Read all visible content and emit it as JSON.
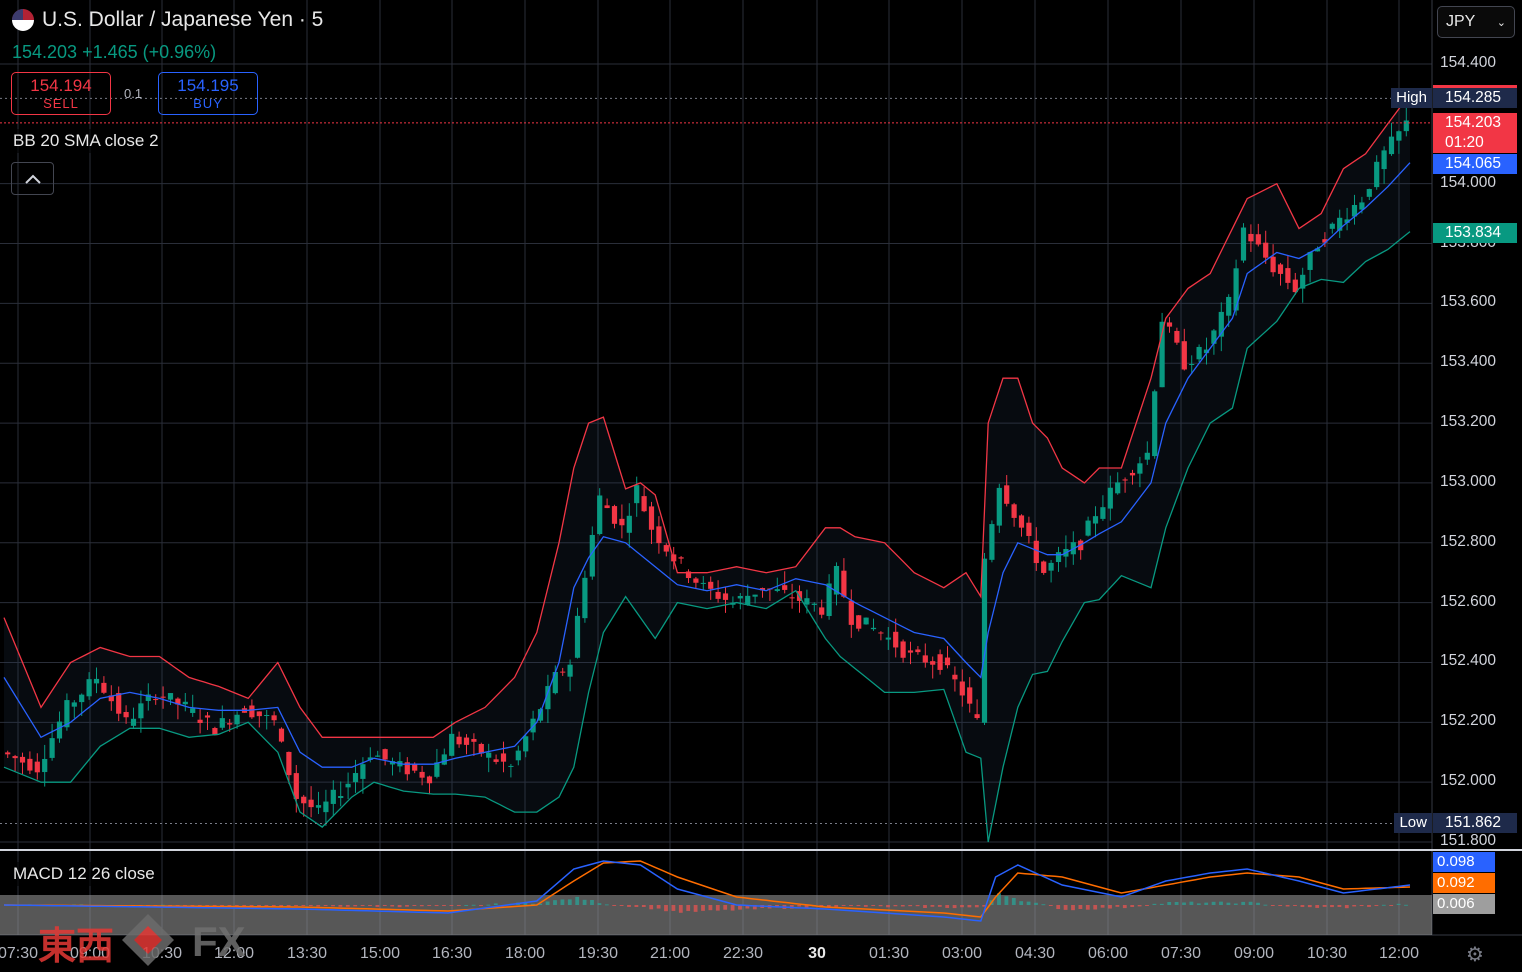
{
  "header": {
    "symbol_title": "U.S. Dollar / Japanese Yen · 5",
    "change": "154.203 +1.465 (+0.96%)",
    "flag_icon": "us-flag-icon"
  },
  "trade": {
    "sell": {
      "price": "154.194",
      "label": "SELL"
    },
    "buy": {
      "price": "154.195",
      "label": "BUY"
    },
    "spread": "0.1"
  },
  "indicators": {
    "bb_label": "BB 20 SMA close 2",
    "macd_label": "MACD 12 26 close"
  },
  "currency_select": {
    "value": "JPY"
  },
  "price_scale": {
    "ticks": [
      "154.400",
      "154.000",
      "153.800",
      "153.600",
      "153.400",
      "153.200",
      "153.000",
      "152.800",
      "152.600",
      "152.400",
      "152.200",
      "152.000",
      "151.800"
    ],
    "tags": [
      {
        "value": "154.296",
        "color": "#f23645"
      },
      {
        "value": "154.285",
        "color": "#1e2a4a",
        "side_label": "High"
      },
      {
        "value": "154.203",
        "sub": "01:20",
        "color": "#f23645"
      },
      {
        "value": "154.065",
        "color": "#2962ff"
      },
      {
        "value": "153.834",
        "color": "#089981"
      },
      {
        "value": "151.862",
        "color": "#1e2a4a",
        "side_label": "Low"
      }
    ]
  },
  "macd_scale": {
    "tags": [
      {
        "value": "0.098",
        "color": "#2962ff"
      },
      {
        "value": "0.092",
        "color": "#ff6d00"
      },
      {
        "value": "0.006",
        "color": "#9e9e9e"
      }
    ]
  },
  "time_axis": {
    "labels": [
      "07:30",
      "09:00",
      "10:30",
      "12:00",
      "13:30",
      "15:00",
      "16:30",
      "18:00",
      "19:30",
      "21:00",
      "22:30",
      "30",
      "01:30",
      "03:00",
      "04:30",
      "06:00",
      "07:30",
      "09:00",
      "10:30",
      "12:00"
    ]
  },
  "watermark": {
    "text": "東西",
    "fx": "FX"
  },
  "colors": {
    "up": "#089981",
    "down": "#f23645",
    "bb_upper": "#f23645",
    "bb_basis": "#2962ff",
    "bb_lower": "#089981",
    "macd": "#2962ff",
    "signal": "#ff6d00"
  },
  "chart_data": {
    "type": "candlestick",
    "symbol": "U.S. Dollar / Japanese Yen",
    "interval": "5",
    "ylim": [
      151.78,
      154.42
    ],
    "high": 154.285,
    "low": 151.862,
    "last": 154.203,
    "bb_upper_last": 154.296,
    "bb_basis_last": 154.065,
    "bb_lower_last": 153.834,
    "close_path": [
      [
        0,
        152.1
      ],
      [
        5,
        152.05
      ],
      [
        9,
        152.25
      ],
      [
        13,
        152.35
      ],
      [
        17,
        152.2
      ],
      [
        21,
        152.3
      ],
      [
        25,
        152.25
      ],
      [
        29,
        152.18
      ],
      [
        33,
        152.25
      ],
      [
        37,
        152.2
      ],
      [
        40,
        151.95
      ],
      [
        43,
        151.9
      ],
      [
        47,
        152.0
      ],
      [
        50,
        152.1
      ],
      [
        54,
        152.05
      ],
      [
        58,
        152.02
      ],
      [
        61,
        152.15
      ],
      [
        65,
        152.1
      ],
      [
        69,
        152.05
      ],
      [
        72,
        152.2
      ],
      [
        75,
        152.35
      ],
      [
        77,
        152.4
      ],
      [
        79,
        152.7
      ],
      [
        81,
        152.95
      ],
      [
        84,
        152.85
      ],
      [
        86,
        152.98
      ],
      [
        88,
        152.85
      ],
      [
        91,
        152.75
      ],
      [
        95,
        152.65
      ],
      [
        99,
        152.6
      ],
      [
        103,
        152.65
      ],
      [
        107,
        152.62
      ],
      [
        111,
        152.58
      ],
      [
        113,
        152.7
      ],
      [
        115,
        152.55
      ],
      [
        119,
        152.5
      ],
      [
        123,
        152.42
      ],
      [
        127,
        152.4
      ],
      [
        130,
        152.3
      ],
      [
        132,
        152.2
      ],
      [
        133,
        152.75
      ],
      [
        135,
        153.0
      ],
      [
        137,
        152.9
      ],
      [
        139,
        152.8
      ],
      [
        141,
        152.7
      ],
      [
        143,
        152.75
      ],
      [
        146,
        152.8
      ],
      [
        148,
        152.9
      ],
      [
        151,
        153.0
      ],
      [
        155,
        153.1
      ],
      [
        157,
        153.55
      ],
      [
        160,
        153.4
      ],
      [
        163,
        153.45
      ],
      [
        166,
        153.6
      ],
      [
        168,
        153.85
      ],
      [
        172,
        153.72
      ],
      [
        175,
        153.65
      ],
      [
        178,
        153.8
      ],
      [
        181,
        153.88
      ],
      [
        184,
        153.95
      ],
      [
        187,
        154.1
      ],
      [
        190,
        154.2
      ]
    ],
    "bb_upper_path": [
      [
        0,
        152.55
      ],
      [
        5,
        152.25
      ],
      [
        9,
        152.4
      ],
      [
        13,
        152.45
      ],
      [
        17,
        152.42
      ],
      [
        21,
        152.42
      ],
      [
        25,
        152.35
      ],
      [
        29,
        152.32
      ],
      [
        33,
        152.28
      ],
      [
        37,
        152.4
      ],
      [
        40,
        152.25
      ],
      [
        43,
        152.15
      ],
      [
        47,
        152.15
      ],
      [
        50,
        152.15
      ],
      [
        54,
        152.15
      ],
      [
        58,
        152.15
      ],
      [
        61,
        152.2
      ],
      [
        65,
        152.25
      ],
      [
        69,
        152.35
      ],
      [
        72,
        152.5
      ],
      [
        75,
        152.8
      ],
      [
        77,
        153.05
      ],
      [
        79,
        153.2
      ],
      [
        81,
        153.22
      ],
      [
        84,
        152.98
      ],
      [
        86,
        153.0
      ],
      [
        88,
        152.96
      ],
      [
        91,
        152.7
      ],
      [
        95,
        152.7
      ],
      [
        99,
        152.72
      ],
      [
        103,
        152.7
      ],
      [
        107,
        152.72
      ],
      [
        111,
        152.85
      ],
      [
        113,
        152.85
      ],
      [
        115,
        152.82
      ],
      [
        119,
        152.8
      ],
      [
        123,
        152.7
      ],
      [
        127,
        152.65
      ],
      [
        130,
        152.7
      ],
      [
        132,
        152.62
      ],
      [
        133,
        153.2
      ],
      [
        135,
        153.35
      ],
      [
        137,
        153.35
      ],
      [
        139,
        153.2
      ],
      [
        141,
        153.15
      ],
      [
        143,
        153.05
      ],
      [
        146,
        153.0
      ],
      [
        148,
        153.05
      ],
      [
        151,
        153.05
      ],
      [
        155,
        153.35
      ],
      [
        157,
        153.55
      ],
      [
        160,
        153.65
      ],
      [
        163,
        153.7
      ],
      [
        166,
        153.85
      ],
      [
        168,
        153.95
      ],
      [
        172,
        154.0
      ],
      [
        175,
        153.85
      ],
      [
        178,
        153.9
      ],
      [
        181,
        154.05
      ],
      [
        184,
        154.1
      ],
      [
        187,
        154.2
      ],
      [
        190,
        154.3
      ]
    ],
    "bb_basis_path": [
      [
        0,
        152.35
      ],
      [
        5,
        152.15
      ],
      [
        9,
        152.2
      ],
      [
        13,
        152.28
      ],
      [
        17,
        152.3
      ],
      [
        21,
        152.28
      ],
      [
        25,
        152.25
      ],
      [
        29,
        152.24
      ],
      [
        33,
        152.24
      ],
      [
        37,
        152.25
      ],
      [
        40,
        152.1
      ],
      [
        43,
        152.05
      ],
      [
        47,
        152.05
      ],
      [
        50,
        152.08
      ],
      [
        54,
        152.06
      ],
      [
        58,
        152.06
      ],
      [
        61,
        152.08
      ],
      [
        65,
        152.1
      ],
      [
        69,
        152.12
      ],
      [
        72,
        152.2
      ],
      [
        75,
        152.4
      ],
      [
        77,
        152.65
      ],
      [
        79,
        152.75
      ],
      [
        81,
        152.82
      ],
      [
        84,
        152.8
      ],
      [
        86,
        152.76
      ],
      [
        88,
        152.72
      ],
      [
        91,
        152.66
      ],
      [
        95,
        152.64
      ],
      [
        99,
        152.66
      ],
      [
        103,
        152.64
      ],
      [
        107,
        152.68
      ],
      [
        111,
        152.66
      ],
      [
        113,
        152.63
      ],
      [
        115,
        152.6
      ],
      [
        119,
        152.55
      ],
      [
        123,
        152.5
      ],
      [
        127,
        152.48
      ],
      [
        130,
        152.4
      ],
      [
        132,
        152.35
      ],
      [
        133,
        152.5
      ],
      [
        135,
        152.7
      ],
      [
        137,
        152.8
      ],
      [
        139,
        152.78
      ],
      [
        141,
        152.76
      ],
      [
        143,
        152.76
      ],
      [
        146,
        152.8
      ],
      [
        148,
        152.83
      ],
      [
        151,
        152.87
      ],
      [
        155,
        153.0
      ],
      [
        157,
        153.2
      ],
      [
        160,
        153.35
      ],
      [
        163,
        153.45
      ],
      [
        166,
        153.55
      ],
      [
        168,
        153.7
      ],
      [
        172,
        153.77
      ],
      [
        175,
        153.75
      ],
      [
        178,
        153.79
      ],
      [
        181,
        153.86
      ],
      [
        184,
        153.92
      ],
      [
        187,
        153.99
      ],
      [
        190,
        154.07
      ]
    ],
    "bb_lower_path": [
      [
        0,
        152.05
      ],
      [
        5,
        152.0
      ],
      [
        9,
        152.0
      ],
      [
        13,
        152.12
      ],
      [
        17,
        152.18
      ],
      [
        21,
        152.18
      ],
      [
        25,
        152.15
      ],
      [
        29,
        152.16
      ],
      [
        33,
        152.2
      ],
      [
        37,
        152.1
      ],
      [
        40,
        151.9
      ],
      [
        43,
        151.85
      ],
      [
        47,
        151.95
      ],
      [
        50,
        152.0
      ],
      [
        54,
        151.97
      ],
      [
        58,
        151.96
      ],
      [
        61,
        151.96
      ],
      [
        65,
        151.95
      ],
      [
        69,
        151.9
      ],
      [
        72,
        151.9
      ],
      [
        75,
        151.95
      ],
      [
        77,
        152.05
      ],
      [
        79,
        152.3
      ],
      [
        81,
        152.5
      ],
      [
        84,
        152.62
      ],
      [
        86,
        152.55
      ],
      [
        88,
        152.48
      ],
      [
        91,
        152.6
      ],
      [
        95,
        152.58
      ],
      [
        99,
        152.6
      ],
      [
        103,
        152.58
      ],
      [
        107,
        152.64
      ],
      [
        111,
        152.48
      ],
      [
        113,
        152.42
      ],
      [
        115,
        152.38
      ],
      [
        119,
        152.3
      ],
      [
        123,
        152.3
      ],
      [
        127,
        152.31
      ],
      [
        130,
        152.1
      ],
      [
        132,
        152.08
      ],
      [
        133,
        151.8
      ],
      [
        135,
        152.05
      ],
      [
        137,
        152.25
      ],
      [
        139,
        152.36
      ],
      [
        141,
        152.37
      ],
      [
        143,
        152.47
      ],
      [
        146,
        152.6
      ],
      [
        148,
        152.61
      ],
      [
        151,
        152.69
      ],
      [
        155,
        152.65
      ],
      [
        157,
        152.85
      ],
      [
        160,
        153.05
      ],
      [
        163,
        153.2
      ],
      [
        166,
        153.25
      ],
      [
        168,
        153.45
      ],
      [
        172,
        153.54
      ],
      [
        175,
        153.65
      ],
      [
        178,
        153.68
      ],
      [
        181,
        153.67
      ],
      [
        184,
        153.74
      ],
      [
        187,
        153.78
      ],
      [
        190,
        153.84
      ]
    ]
  }
}
